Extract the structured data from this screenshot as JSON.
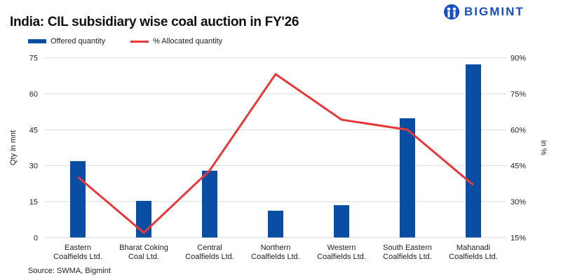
{
  "logo": {
    "text": "BIGMINT"
  },
  "source": "Source: SWMA, Bigmint",
  "chart_data": {
    "type": "bar",
    "title": "India: CIL subsidiary wise coal auction in FY'26",
    "categories": [
      [
        "Eastern",
        "Coalfields Ltd."
      ],
      [
        "Bharat Coking",
        "Coal Ltd."
      ],
      [
        "Central",
        "Coalfields Ltd."
      ],
      [
        "Northern",
        "Coalfields Ltd."
      ],
      [
        "Western",
        "Coalfields Ltd."
      ],
      [
        "South Eastern",
        "Coalfields Ltd."
      ],
      [
        "Mahanadi",
        "Coalfields Ltd."
      ]
    ],
    "series": [
      {
        "name": "Offered quantity",
        "type": "bar",
        "axis": "left",
        "color": "#0a4ea3",
        "values": [
          31.9,
          15.3,
          27.9,
          11.2,
          13.5,
          49.8,
          72.3
        ]
      },
      {
        "name": "% Allocated quantity",
        "type": "line",
        "axis": "right",
        "color": "#e8383a",
        "values": [
          40.3,
          17.0,
          43.0,
          83.2,
          64.2,
          60.0,
          36.9
        ]
      }
    ],
    "ylabel": "Qty in mnt",
    "y2label": "in %",
    "ylim": [
      0,
      75
    ],
    "yticks": [
      "0",
      "15",
      "30",
      "45",
      "60",
      "75"
    ],
    "y2lim": [
      15,
      90
    ],
    "y2ticks": [
      "15%",
      "30%",
      "45%",
      "60%",
      "75%",
      "90%"
    ],
    "grid": true,
    "legend": "top-left"
  }
}
